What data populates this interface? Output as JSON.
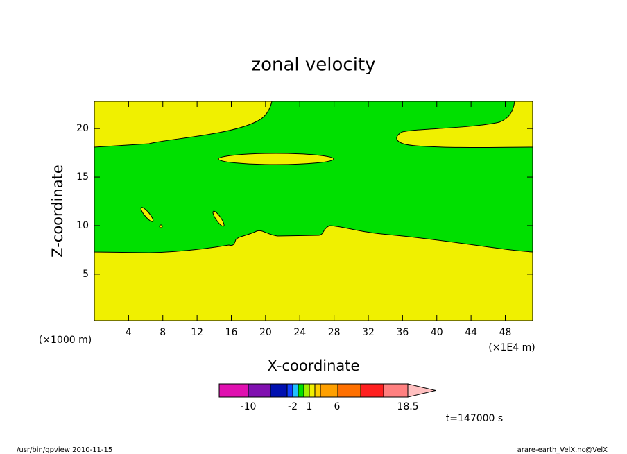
{
  "chart_data": {
    "type": "contour",
    "title": "zonal velocity",
    "x_label": "X-coordinate",
    "y_label": "Z-coordinate",
    "x_unit": "(×1E4 m)",
    "y_unit": "(×1000 m)",
    "annotation": "t=147000 s",
    "footer_left": "/usr/bin/gpview   2010-11-15",
    "footer_right": "arare-earth_VelX.nc@VelX",
    "xlim": [
      0,
      51.2
    ],
    "ylim": [
      0.2,
      22.8
    ],
    "xticks": [
      4,
      8,
      12,
      16,
      20,
      24,
      28,
      32,
      36,
      40,
      44,
      48
    ],
    "yticks": [
      5,
      10,
      15,
      20
    ],
    "colorbar": {
      "colors": [
        "#e010b0",
        "#8010b0",
        "#0010b0",
        "#1040ff",
        "#20c0ff",
        "#00e000",
        "#a0f000",
        "#f0f000",
        "#ffd000",
        "#ffa000",
        "#ff7000",
        "#ff2020",
        "#ff8080",
        "#ffc0c0"
      ],
      "ticks": [
        -10,
        -2,
        1,
        6,
        18.5
      ]
    }
  }
}
